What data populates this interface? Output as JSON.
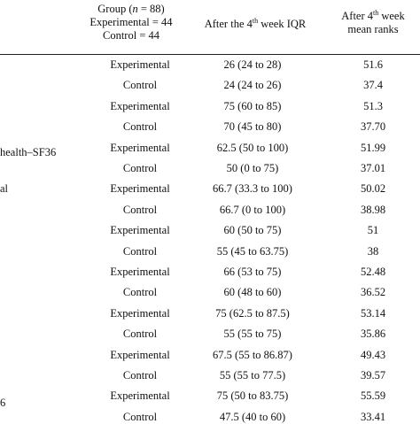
{
  "header": {
    "group_line1_pre": "Group (",
    "group_line1_n": "n",
    "group_line1_post": " = 88)",
    "group_line2": "Experimental = 44",
    "group_line3": "Control = 44",
    "iqr_pre": "After the 4",
    "iqr_sup": "th",
    "iqr_post": " week IQR",
    "rank_line1_pre": "After 4",
    "rank_line1_sup": "th",
    "rank_line1_post": " week",
    "rank_line2": "mean ranks"
  },
  "side_labels": [
    {
      "text": "health–SF36"
    },
    {
      "text": "al"
    },
    {
      "text": "6"
    }
  ],
  "rows": [
    {
      "group": "Experimental",
      "iqr": "26 (24 to 28)",
      "rank": "51.6"
    },
    {
      "group": "Control",
      "iqr": "24 (24 to 26)",
      "rank": "37.4"
    },
    {
      "group": "Experimental",
      "iqr": "75 (60 to 85)",
      "rank": "51.3"
    },
    {
      "group": "Control",
      "iqr": "70 (45 to 80)",
      "rank": "37.70"
    },
    {
      "group": "Experimental",
      "iqr": "62.5 (50 to 100)",
      "rank": "51.99"
    },
    {
      "group": "Control",
      "iqr": "50 (0 to 75)",
      "rank": "37.01"
    },
    {
      "group": "Experimental",
      "iqr": "66.7 (33.3 to 100)",
      "rank": "50.02"
    },
    {
      "group": "Control",
      "iqr": "66.7 (0 to 100)",
      "rank": "38.98"
    },
    {
      "group": "Experimental",
      "iqr": "60 (50 to 75)",
      "rank": "51"
    },
    {
      "group": "Control",
      "iqr": "55 (45 to 63.75)",
      "rank": "38"
    },
    {
      "group": "Experimental",
      "iqr": "66 (53 to 75)",
      "rank": "52.48"
    },
    {
      "group": "Control",
      "iqr": "60 (48 to 60)",
      "rank": "36.52"
    },
    {
      "group": "Experimental",
      "iqr": "75 (62.5 to 87.5)",
      "rank": "53.14"
    },
    {
      "group": "Control",
      "iqr": "55 (55 to 75)",
      "rank": "35.86"
    },
    {
      "group": "Experimental",
      "iqr": "67.5 (55 to 86.87)",
      "rank": "49.43"
    },
    {
      "group": "Control",
      "iqr": "55 (55 to 77.5)",
      "rank": "39.57"
    },
    {
      "group": "Experimental",
      "iqr": "75 (50 to 83.75)",
      "rank": "55.59"
    },
    {
      "group": "Control",
      "iqr": "47.5 (40 to 60)",
      "rank": "33.41"
    }
  ]
}
